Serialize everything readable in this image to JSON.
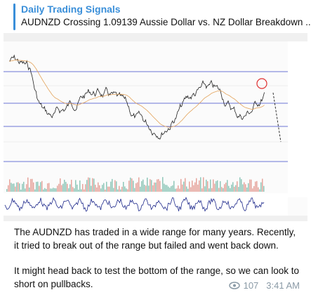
{
  "header": {
    "title": "Daily Trading Signals",
    "subtitle": "AUDNZD Crossing 1.09139 Aussie Dollar vs. NZ Dollar Breakdown ..."
  },
  "message": {
    "paragraphs": [
      "The AUDNZD has traded in a wide range for many years. Recently, it tried to break out of the range but failed and went back down.",
      "It might head back to test the bottom of the range, so we can look to short on pullbacks."
    ],
    "views": "107",
    "time": "3:41 AM"
  }
}
